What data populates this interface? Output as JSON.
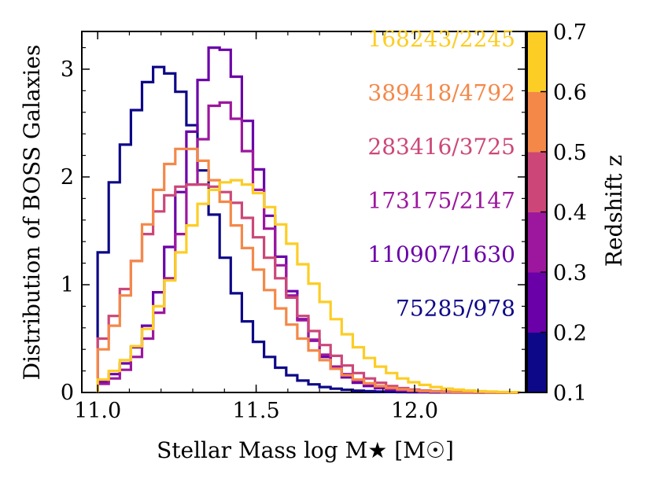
{
  "chart_data": {
    "type": "histogram",
    "xlabel": "Stellar Mass log M★ [M☉]",
    "ylabel": "Distribution of BOSS Galaxies",
    "xlim": [
      10.95,
      12.35
    ],
    "ylim": [
      0,
      3.35
    ],
    "xticks": [
      "11.0",
      "11.5",
      "12.0"
    ],
    "yticks": [
      "0",
      "1",
      "2",
      "3"
    ],
    "bin_edges_start": 11.0,
    "bin_width": 0.035,
    "colorbar": {
      "label": "Redshift z",
      "range": [
        0.1,
        0.7
      ],
      "ticks": [
        "0.1",
        "0.2",
        "0.3",
        "0.4",
        "0.5",
        "0.6",
        "0.7"
      ],
      "bands": [
        "#0d0887",
        "#6a00a8",
        "#9c179e",
        "#cc4778",
        "#f48849",
        "#fccd25"
      ]
    },
    "series": [
      {
        "name": "75285/978",
        "color": "#0d0887",
        "values": [
          1.3,
          1.95,
          2.3,
          2.62,
          2.88,
          3.02,
          2.96,
          2.79,
          2.48,
          2.06,
          1.65,
          1.25,
          0.92,
          0.66,
          0.47,
          0.33,
          0.23,
          0.16,
          0.11,
          0.075,
          0.05,
          0.035,
          0.025,
          0.017,
          0.012,
          0.008,
          0.006,
          0.004,
          0.003,
          0.002,
          0.001,
          0.001,
          0.0,
          0.0,
          0.0,
          0.0,
          0.0,
          0.0
        ]
      },
      {
        "name": "110907/1630",
        "color": "#6a00a8",
        "values": [
          0.1,
          0.17,
          0.27,
          0.42,
          0.62,
          0.93,
          1.35,
          1.86,
          2.42,
          2.9,
          3.2,
          3.18,
          2.93,
          2.52,
          2.07,
          1.64,
          1.26,
          0.94,
          0.68,
          0.48,
          0.33,
          0.22,
          0.14,
          0.09,
          0.06,
          0.04,
          0.025,
          0.016,
          0.01,
          0.006,
          0.004,
          0.002,
          0.001,
          0.0,
          0.0,
          0.0,
          0.0,
          0.0
        ]
      },
      {
        "name": "173175/2147",
        "color": "#9c179e",
        "values": [
          0.08,
          0.13,
          0.21,
          0.33,
          0.5,
          0.74,
          1.06,
          1.47,
          1.93,
          2.35,
          2.66,
          2.69,
          2.54,
          2.24,
          1.88,
          1.52,
          1.18,
          0.9,
          0.67,
          0.49,
          0.35,
          0.24,
          0.17,
          0.11,
          0.075,
          0.05,
          0.033,
          0.022,
          0.014,
          0.009,
          0.006,
          0.004,
          0.002,
          0.001,
          0.0,
          0.0,
          0.0,
          0.0
        ]
      },
      {
        "name": "283416/3725",
        "color": "#cc4778",
        "values": [
          0.5,
          0.71,
          0.96,
          1.22,
          1.47,
          1.68,
          1.83,
          1.91,
          1.93,
          1.93,
          1.91,
          1.86,
          1.76,
          1.62,
          1.44,
          1.25,
          1.06,
          0.88,
          0.71,
          0.57,
          0.44,
          0.34,
          0.25,
          0.18,
          0.13,
          0.09,
          0.06,
          0.04,
          0.027,
          0.018,
          0.012,
          0.008,
          0.005,
          0.003,
          0.002,
          0.001,
          0.0,
          0.0
        ]
      },
      {
        "name": "389418/4792",
        "color": "#f48849",
        "values": [
          0.4,
          0.62,
          0.9,
          1.22,
          1.56,
          1.88,
          2.12,
          2.26,
          2.26,
          2.15,
          1.97,
          1.77,
          1.55,
          1.34,
          1.14,
          0.95,
          0.78,
          0.63,
          0.5,
          0.39,
          0.3,
          0.22,
          0.16,
          0.12,
          0.085,
          0.06,
          0.042,
          0.029,
          0.02,
          0.014,
          0.009,
          0.006,
          0.004,
          0.003,
          0.002,
          0.001,
          0.0,
          0.0
        ]
      },
      {
        "name": "168243/2245",
        "color": "#fccd25",
        "values": [
          0.12,
          0.2,
          0.3,
          0.43,
          0.59,
          0.8,
          1.04,
          1.3,
          1.55,
          1.75,
          1.88,
          1.95,
          1.97,
          1.93,
          1.85,
          1.72,
          1.56,
          1.38,
          1.19,
          1.01,
          0.84,
          0.68,
          0.54,
          0.42,
          0.32,
          0.24,
          0.18,
          0.13,
          0.095,
          0.07,
          0.05,
          0.036,
          0.026,
          0.018,
          0.012,
          0.008,
          0.005,
          0.003
        ]
      }
    ]
  }
}
